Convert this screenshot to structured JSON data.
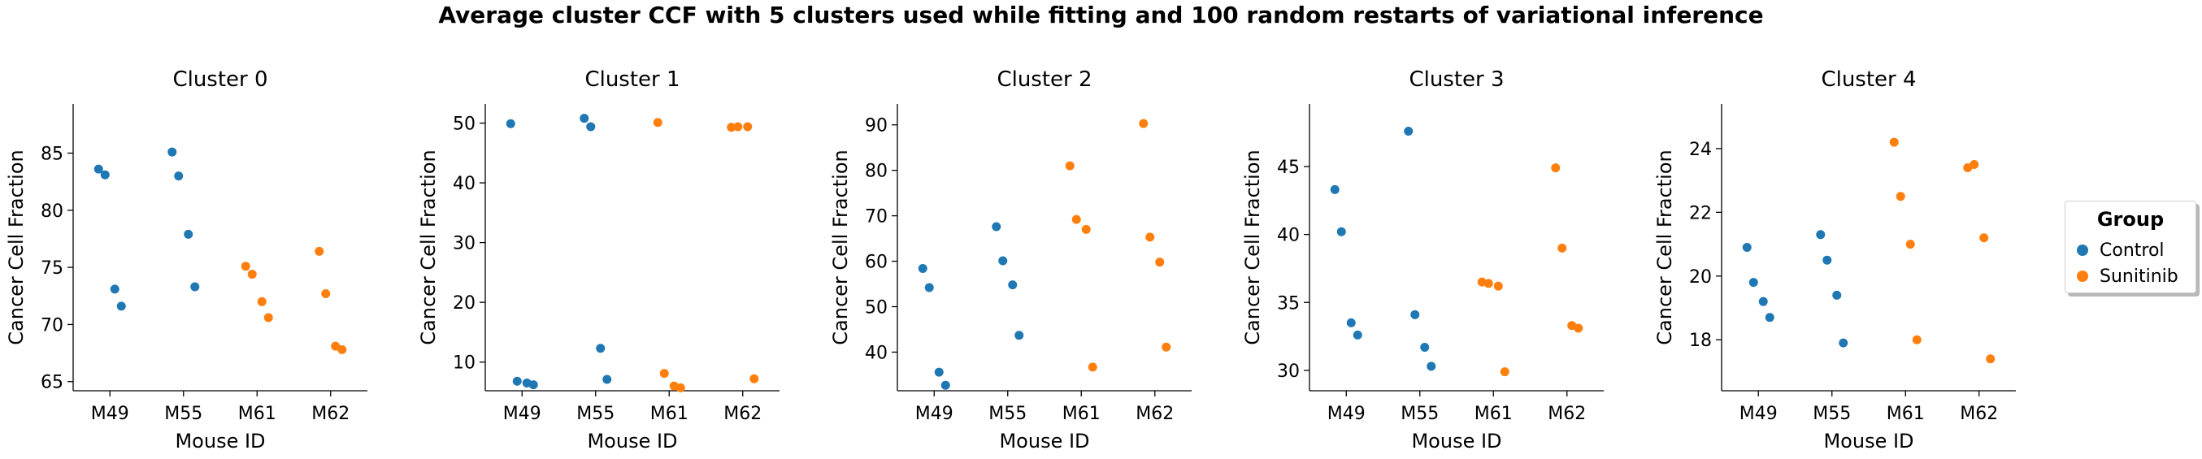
{
  "figure": {
    "suptitle": "Average cluster CCF with 5 clusters used while fitting and 100 random restarts of variational inference"
  },
  "legend": {
    "title": "Group",
    "entries": [
      {
        "label": "Control",
        "color": "#1f77b4"
      },
      {
        "label": "Sunitinib",
        "color": "#ff7f0e"
      }
    ]
  },
  "chart_data": [
    {
      "type": "scatter",
      "title": "Cluster 0",
      "xlabel": "Mouse ID",
      "ylabel": "Cancer Cell Fraction",
      "categories": [
        "M49",
        "M55",
        "M61",
        "M62"
      ],
      "ylim": [
        64.2,
        89.3
      ],
      "yticks": [
        65,
        70,
        75,
        80,
        85
      ],
      "points": [
        {
          "x": "M49",
          "y": 83.6,
          "group": "Control"
        },
        {
          "x": "M49",
          "y": 83.1,
          "group": "Control"
        },
        {
          "x": "M49",
          "y": 73.1,
          "group": "Control"
        },
        {
          "x": "M49",
          "y": 71.6,
          "group": "Control"
        },
        {
          "x": "M55",
          "y": 85.1,
          "group": "Control"
        },
        {
          "x": "M55",
          "y": 83.0,
          "group": "Control"
        },
        {
          "x": "M55",
          "y": 77.9,
          "group": "Control"
        },
        {
          "x": "M55",
          "y": 73.3,
          "group": "Control"
        },
        {
          "x": "M61",
          "y": 75.1,
          "group": "Sunitinib"
        },
        {
          "x": "M61",
          "y": 74.4,
          "group": "Sunitinib"
        },
        {
          "x": "M61",
          "y": 72.0,
          "group": "Sunitinib"
        },
        {
          "x": "M61",
          "y": 70.6,
          "group": "Sunitinib"
        },
        {
          "x": "M62",
          "y": 76.4,
          "group": "Sunitinib"
        },
        {
          "x": "M62",
          "y": 72.7,
          "group": "Sunitinib"
        },
        {
          "x": "M62",
          "y": 68.1,
          "group": "Sunitinib"
        },
        {
          "x": "M62",
          "y": 67.8,
          "group": "Sunitinib"
        }
      ]
    },
    {
      "type": "scatter",
      "title": "Cluster 1",
      "xlabel": "Mouse ID",
      "ylabel": "Cancer Cell Fraction",
      "categories": [
        "M49",
        "M55",
        "M61",
        "M62"
      ],
      "ylim": [
        5.2,
        53.2
      ],
      "yticks": [
        10,
        20,
        30,
        40,
        50
      ],
      "points": [
        {
          "x": "M49",
          "y": 49.9,
          "group": "Control"
        },
        {
          "x": "M49",
          "y": 6.8,
          "group": "Control"
        },
        {
          "x": "M49",
          "y": 6.5,
          "group": "Control"
        },
        {
          "x": "M49",
          "y": 6.2,
          "group": "Control"
        },
        {
          "x": "M55",
          "y": 50.8,
          "group": "Control"
        },
        {
          "x": "M55",
          "y": 49.4,
          "group": "Control"
        },
        {
          "x": "M55",
          "y": 12.3,
          "group": "Control"
        },
        {
          "x": "M55",
          "y": 7.1,
          "group": "Control"
        },
        {
          "x": "M61",
          "y": 50.1,
          "group": "Sunitinib"
        },
        {
          "x": "M61",
          "y": 8.1,
          "group": "Sunitinib"
        },
        {
          "x": "M61",
          "y": 6.0,
          "group": "Sunitinib"
        },
        {
          "x": "M61",
          "y": 5.7,
          "group": "Sunitinib"
        },
        {
          "x": "M62",
          "y": 49.3,
          "group": "Sunitinib"
        },
        {
          "x": "M62",
          "y": 49.4,
          "group": "Sunitinib"
        },
        {
          "x": "M62",
          "y": 49.4,
          "group": "Sunitinib"
        },
        {
          "x": "M62",
          "y": 7.2,
          "group": "Sunitinib"
        }
      ]
    },
    {
      "type": "scatter",
      "title": "Cluster 2",
      "xlabel": "Mouse ID",
      "ylabel": "Cancer Cell Fraction",
      "categories": [
        "M49",
        "M55",
        "M61",
        "M62"
      ],
      "ylim": [
        31.5,
        94.6
      ],
      "yticks": [
        40,
        50,
        60,
        70,
        80,
        90
      ],
      "points": [
        {
          "x": "M49",
          "y": 58.4,
          "group": "Control"
        },
        {
          "x": "M49",
          "y": 54.2,
          "group": "Control"
        },
        {
          "x": "M49",
          "y": 35.6,
          "group": "Control"
        },
        {
          "x": "M49",
          "y": 32.7,
          "group": "Control"
        },
        {
          "x": "M55",
          "y": 67.6,
          "group": "Control"
        },
        {
          "x": "M55",
          "y": 60.1,
          "group": "Control"
        },
        {
          "x": "M55",
          "y": 54.8,
          "group": "Control"
        },
        {
          "x": "M55",
          "y": 43.7,
          "group": "Control"
        },
        {
          "x": "M61",
          "y": 81.0,
          "group": "Sunitinib"
        },
        {
          "x": "M61",
          "y": 69.2,
          "group": "Sunitinib"
        },
        {
          "x": "M61",
          "y": 67.0,
          "group": "Sunitinib"
        },
        {
          "x": "M61",
          "y": 36.7,
          "group": "Sunitinib"
        },
        {
          "x": "M62",
          "y": 90.3,
          "group": "Sunitinib"
        },
        {
          "x": "M62",
          "y": 65.3,
          "group": "Sunitinib"
        },
        {
          "x": "M62",
          "y": 59.8,
          "group": "Sunitinib"
        },
        {
          "x": "M62",
          "y": 41.1,
          "group": "Sunitinib"
        }
      ]
    },
    {
      "type": "scatter",
      "title": "Cluster 3",
      "xlabel": "Mouse ID",
      "ylabel": "Cancer Cell Fraction",
      "categories": [
        "M49",
        "M55",
        "M61",
        "M62"
      ],
      "ylim": [
        28.5,
        49.6
      ],
      "yticks": [
        30,
        35,
        40,
        45
      ],
      "points": [
        {
          "x": "M49",
          "y": 43.3,
          "group": "Control"
        },
        {
          "x": "M49",
          "y": 40.2,
          "group": "Control"
        },
        {
          "x": "M49",
          "y": 33.5,
          "group": "Control"
        },
        {
          "x": "M49",
          "y": 32.6,
          "group": "Control"
        },
        {
          "x": "M55",
          "y": 47.6,
          "group": "Control"
        },
        {
          "x": "M55",
          "y": 34.1,
          "group": "Control"
        },
        {
          "x": "M55",
          "y": 31.7,
          "group": "Control"
        },
        {
          "x": "M55",
          "y": 30.3,
          "group": "Control"
        },
        {
          "x": "M61",
          "y": 36.5,
          "group": "Sunitinib"
        },
        {
          "x": "M61",
          "y": 36.4,
          "group": "Sunitinib"
        },
        {
          "x": "M61",
          "y": 36.2,
          "group": "Sunitinib"
        },
        {
          "x": "M61",
          "y": 29.9,
          "group": "Sunitinib"
        },
        {
          "x": "M62",
          "y": 44.9,
          "group": "Sunitinib"
        },
        {
          "x": "M62",
          "y": 39.0,
          "group": "Sunitinib"
        },
        {
          "x": "M62",
          "y": 33.3,
          "group": "Sunitinib"
        },
        {
          "x": "M62",
          "y": 33.1,
          "group": "Sunitinib"
        }
      ]
    },
    {
      "type": "scatter",
      "title": "Cluster 4",
      "xlabel": "Mouse ID",
      "ylabel": "Cancer Cell Fraction",
      "categories": [
        "M49",
        "M55",
        "M61",
        "M62"
      ],
      "ylim": [
        16.4,
        25.4
      ],
      "yticks": [
        18,
        20,
        22,
        24
      ],
      "points": [
        {
          "x": "M49",
          "y": 20.9,
          "group": "Control"
        },
        {
          "x": "M49",
          "y": 19.8,
          "group": "Control"
        },
        {
          "x": "M49",
          "y": 19.2,
          "group": "Control"
        },
        {
          "x": "M49",
          "y": 18.7,
          "group": "Control"
        },
        {
          "x": "M55",
          "y": 21.3,
          "group": "Control"
        },
        {
          "x": "M55",
          "y": 20.5,
          "group": "Control"
        },
        {
          "x": "M55",
          "y": 19.4,
          "group": "Control"
        },
        {
          "x": "M55",
          "y": 17.9,
          "group": "Control"
        },
        {
          "x": "M61",
          "y": 24.2,
          "group": "Sunitinib"
        },
        {
          "x": "M61",
          "y": 22.5,
          "group": "Sunitinib"
        },
        {
          "x": "M61",
          "y": 21.0,
          "group": "Sunitinib"
        },
        {
          "x": "M61",
          "y": 18.0,
          "group": "Sunitinib"
        },
        {
          "x": "M62",
          "y": 23.4,
          "group": "Sunitinib"
        },
        {
          "x": "M62",
          "y": 23.5,
          "group": "Sunitinib"
        },
        {
          "x": "M62",
          "y": 21.2,
          "group": "Sunitinib"
        },
        {
          "x": "M62",
          "y": 17.4,
          "group": "Sunitinib"
        }
      ]
    }
  ]
}
